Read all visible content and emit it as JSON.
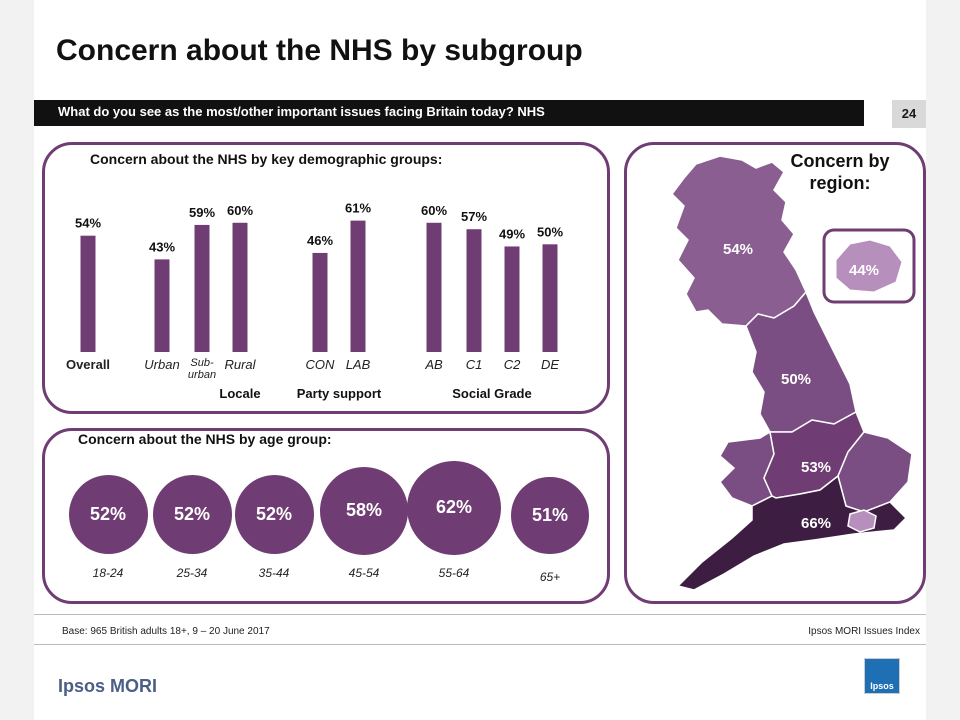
{
  "title": "Concern about the NHS by subgroup",
  "question": "What do you see as the most/other important issues facing Britain today? NHS",
  "page_number": "24",
  "demographic_panel_title": "Concern about the NHS by key demographic groups:",
  "age_panel_title": "Concern about the NHS by age group:",
  "region_panel_title": "Concern by region:",
  "footer": {
    "base": "Base: 965 British adults 18+, 9 – 20 June 2017",
    "source": "Ipsos MORI Issues Index"
  },
  "brand": "Ipsos MORI",
  "logo_text": "Ipsos",
  "colors": {
    "bar": "#6f3d73",
    "panel_border": "#6f3d73",
    "header_bg": "#111111"
  },
  "chart_data": [
    {
      "type": "bar",
      "title": "Concern about the NHS by key demographic groups:",
      "categories": [
        "Overall",
        "Urban",
        "Sub-urban",
        "Rural",
        "CON",
        "LAB",
        "AB",
        "C1",
        "C2",
        "DE"
      ],
      "values": [
        54,
        43,
        59,
        60,
        46,
        61,
        60,
        57,
        49,
        50
      ],
      "value_labels": [
        "54%",
        "43%",
        "59%",
        "60%",
        "46%",
        "61%",
        "60%",
        "57%",
        "49%",
        "50%"
      ],
      "groups": [
        {
          "label": "",
          "members": [
            "Overall"
          ]
        },
        {
          "label": "Locale",
          "members": [
            "Urban",
            "Sub-urban",
            "Rural"
          ]
        },
        {
          "label": "Party support",
          "members": [
            "CON",
            "LAB"
          ]
        },
        {
          "label": "Social Grade",
          "members": [
            "AB",
            "C1",
            "C2",
            "DE"
          ]
        }
      ]
    },
    {
      "type": "bubble",
      "title": "Concern about the NHS by age group:",
      "categories": [
        "18-24",
        "25-34",
        "35-44",
        "45-54",
        "55-64",
        "65+"
      ],
      "values": [
        52,
        52,
        52,
        58,
        62,
        51
      ],
      "value_labels": [
        "52%",
        "52%",
        "52%",
        "58%",
        "62%",
        "51%"
      ]
    },
    {
      "type": "map",
      "title": "Concern by region:",
      "regions": [
        {
          "name": "Scotland",
          "value": 54,
          "label": "54%"
        },
        {
          "name": "North",
          "value": 50,
          "label": "50%"
        },
        {
          "name": "Midlands",
          "value": 53,
          "label": "53%"
        },
        {
          "name": "South",
          "value": 66,
          "label": "66%"
        },
        {
          "name": "London",
          "value": 44,
          "label": "44%"
        }
      ]
    }
  ]
}
